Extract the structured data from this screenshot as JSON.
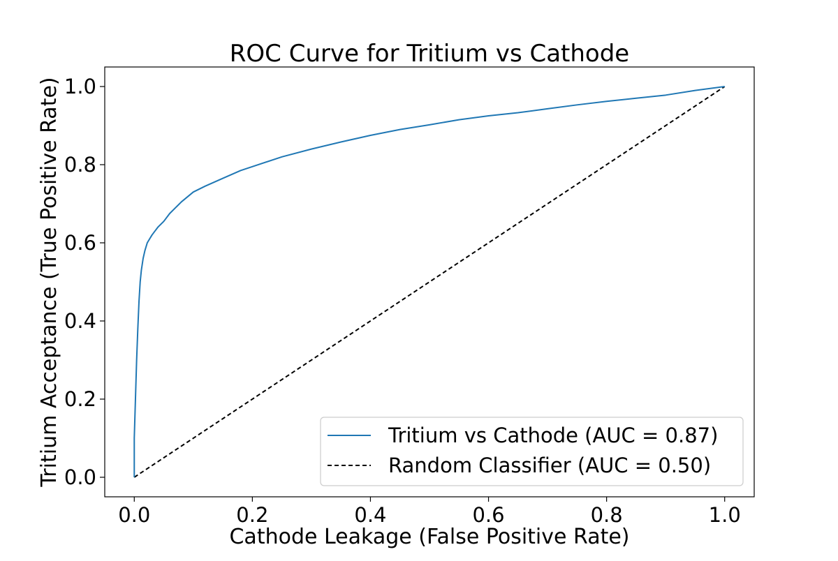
{
  "chart_data": {
    "type": "line",
    "title": "ROC Curve for Tritium vs Cathode",
    "xlabel": "Cathode Leakage (False Positive Rate)",
    "ylabel": "Tritium Acceptance (True Positive Rate)",
    "xlim": [
      -0.05,
      1.05
    ],
    "ylim": [
      -0.05,
      1.05
    ],
    "xticks": [
      0.0,
      0.2,
      0.4,
      0.6,
      0.8,
      1.0
    ],
    "yticks": [
      0.0,
      0.2,
      0.4,
      0.6,
      0.8,
      1.0
    ],
    "xtick_labels": [
      "0.0",
      "0.2",
      "0.4",
      "0.6",
      "0.8",
      "1.0"
    ],
    "ytick_labels": [
      "0.0",
      "0.2",
      "0.4",
      "0.6",
      "0.8",
      "1.0"
    ],
    "grid": false,
    "legend_position": "lower-right",
    "series": [
      {
        "name": "Tritium vs Cathode (AUC = 0.87)",
        "color": "#1f77b4",
        "style": "solid",
        "x": [
          0.0,
          0.0,
          0.002,
          0.004,
          0.006,
          0.008,
          0.01,
          0.012,
          0.015,
          0.018,
          0.022,
          0.026,
          0.03,
          0.035,
          0.04,
          0.05,
          0.06,
          0.07,
          0.08,
          0.1,
          0.12,
          0.15,
          0.18,
          0.2,
          0.25,
          0.3,
          0.35,
          0.4,
          0.45,
          0.5,
          0.55,
          0.6,
          0.65,
          0.7,
          0.75,
          0.8,
          0.85,
          0.9,
          0.95,
          1.0
        ],
        "y": [
          0.0,
          0.1,
          0.2,
          0.3,
          0.38,
          0.45,
          0.5,
          0.53,
          0.56,
          0.58,
          0.6,
          0.61,
          0.62,
          0.63,
          0.64,
          0.655,
          0.675,
          0.69,
          0.705,
          0.73,
          0.745,
          0.765,
          0.785,
          0.795,
          0.82,
          0.84,
          0.858,
          0.875,
          0.89,
          0.902,
          0.915,
          0.925,
          0.933,
          0.943,
          0.953,
          0.962,
          0.97,
          0.978,
          0.99,
          1.0
        ]
      },
      {
        "name": "Random Classifier (AUC = 0.50)",
        "color": "#000000",
        "style": "dashed",
        "x": [
          0.0,
          1.0
        ],
        "y": [
          0.0,
          1.0
        ]
      }
    ]
  }
}
